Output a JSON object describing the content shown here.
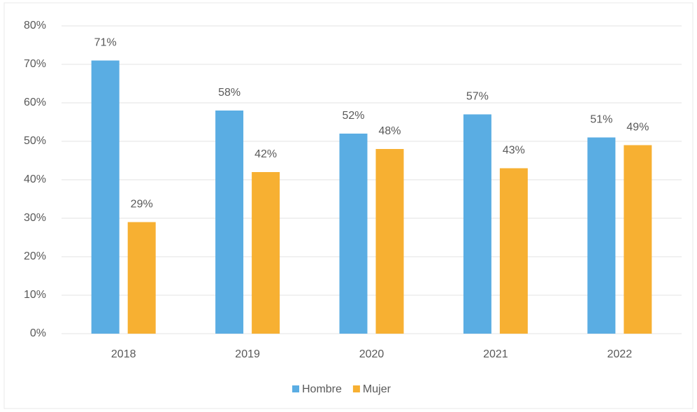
{
  "chart_data": {
    "type": "bar",
    "categories": [
      "2018",
      "2019",
      "2020",
      "2021",
      "2022"
    ],
    "series": [
      {
        "name": "Hombre",
        "color": "#5aade3",
        "values": [
          71,
          58,
          52,
          57,
          51
        ],
        "value_labels": [
          "71%",
          "58%",
          "52%",
          "57%",
          "51%"
        ]
      },
      {
        "name": "Mujer",
        "color": "#f7b032",
        "values": [
          29,
          42,
          48,
          43,
          49
        ],
        "value_labels": [
          "29%",
          "42%",
          "48%",
          "43%",
          "49%"
        ]
      }
    ],
    "ylim": [
      0,
      80
    ],
    "yticks": [
      {
        "value": 0,
        "label": "0%"
      },
      {
        "value": 10,
        "label": "10%"
      },
      {
        "value": 20,
        "label": "20%"
      },
      {
        "value": 30,
        "label": "30%"
      },
      {
        "value": 40,
        "label": "40%"
      },
      {
        "value": 50,
        "label": "50%"
      },
      {
        "value": 60,
        "label": "60%"
      },
      {
        "value": 70,
        "label": "70%"
      },
      {
        "value": 80,
        "label": "80%"
      }
    ],
    "grid": true,
    "legend": "bottom"
  }
}
